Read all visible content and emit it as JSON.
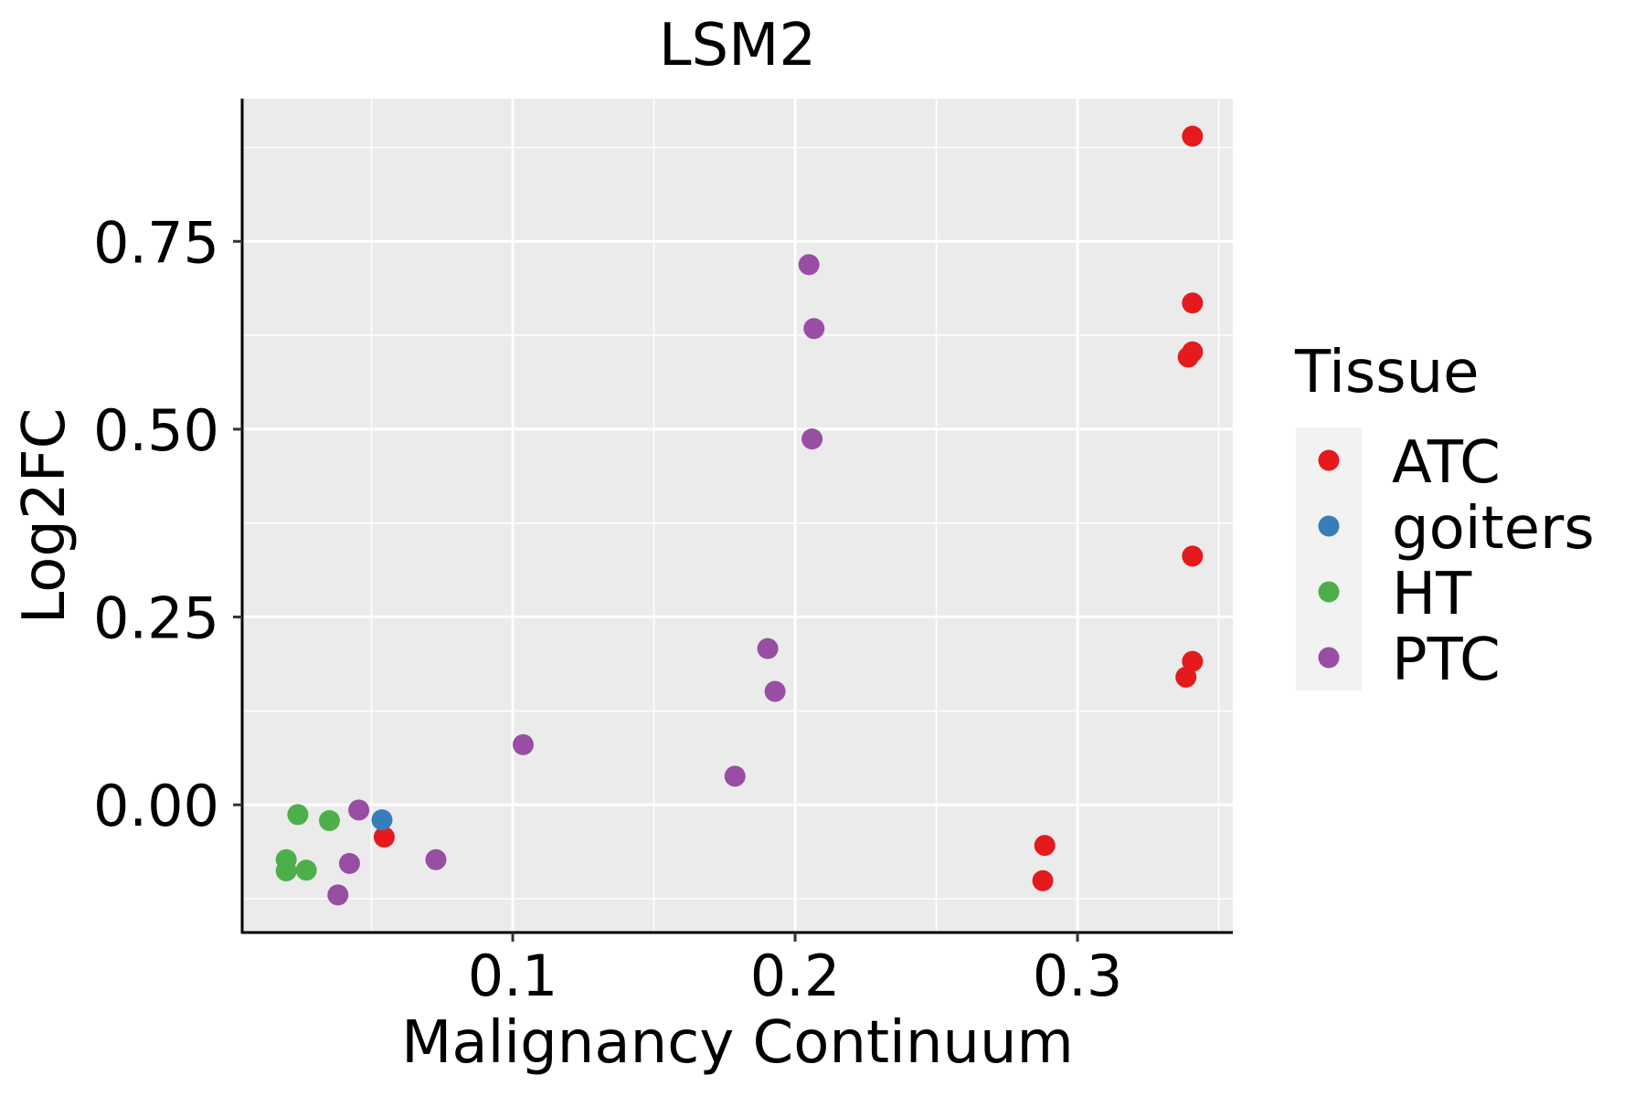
{
  "chart_data": {
    "type": "scatter",
    "title": "LSM2",
    "xlabel": "Malignancy Continuum",
    "ylabel": "Log2FC",
    "xlim": [
      0.0042,
      0.355
    ],
    "ylim": [
      -0.17,
      0.94
    ],
    "x_ticks": [
      {
        "value": 0.1,
        "label": "0.1"
      },
      {
        "value": 0.2,
        "label": "0.2"
      },
      {
        "value": 0.3,
        "label": "0.3"
      }
    ],
    "y_ticks": [
      {
        "value": 0.0,
        "label": "0.00"
      },
      {
        "value": 0.25,
        "label": "0.25"
      },
      {
        "value": 0.5,
        "label": "0.50"
      },
      {
        "value": 0.75,
        "label": "0.75"
      }
    ],
    "grid": true,
    "legend": {
      "title": "Tissue",
      "placement": "right"
    },
    "series": [
      {
        "name": "ATC",
        "color": "#E41A1C",
        "points": [
          [
            0.3407,
            0.89
          ],
          [
            0.3407,
            0.668
          ],
          [
            0.3407,
            0.603
          ],
          [
            0.3392,
            0.596
          ],
          [
            0.3407,
            0.331
          ],
          [
            0.3407,
            0.191
          ],
          [
            0.3384,
            0.17
          ],
          [
            0.2884,
            -0.054
          ],
          [
            0.2877,
            -0.101
          ],
          [
            0.0545,
            -0.043
          ]
        ]
      },
      {
        "name": "goiters",
        "color": "#377EB8",
        "points": [
          [
            0.0537,
            -0.02
          ]
        ]
      },
      {
        "name": "HT",
        "color": "#4DAF4A",
        "points": [
          [
            0.0239,
            -0.013
          ],
          [
            0.0351,
            -0.021
          ],
          [
            0.0198,
            -0.073
          ],
          [
            0.0198,
            -0.088
          ],
          [
            0.0269,
            -0.087
          ]
        ]
      },
      {
        "name": "PTC",
        "color": "#984EA3",
        "points": [
          [
            0.0455,
            -0.007
          ],
          [
            0.0422,
            -0.078
          ],
          [
            0.0381,
            -0.12
          ],
          [
            0.0728,
            -0.073
          ],
          [
            0.1037,
            0.08
          ],
          [
            0.1787,
            0.038
          ],
          [
            0.1903,
            0.208
          ],
          [
            0.1929,
            0.151
          ],
          [
            0.2049,
            0.719
          ],
          [
            0.2067,
            0.634
          ],
          [
            0.206,
            0.487
          ]
        ]
      }
    ]
  }
}
